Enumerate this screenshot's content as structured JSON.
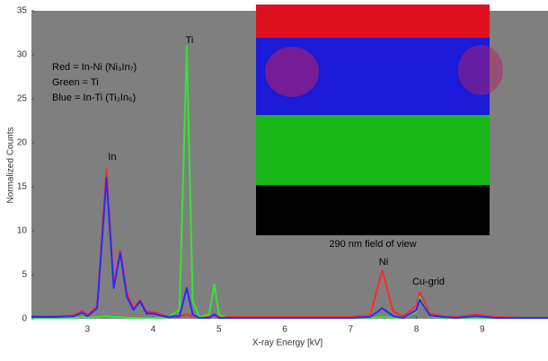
{
  "chart_data": {
    "type": "line",
    "xlabel": "X-ray Energy [kV]",
    "ylabel": "Normalized Counts",
    "x": [
      2.15,
      2.5,
      2.8,
      2.92,
      3.0,
      3.15,
      3.29,
      3.4,
      3.5,
      3.6,
      3.7,
      3.8,
      3.9,
      4.0,
      4.2,
      4.4,
      4.51,
      4.6,
      4.7,
      4.85,
      4.93,
      5.0,
      5.1,
      5.5,
      6.0,
      6.5,
      7.0,
      7.3,
      7.48,
      7.65,
      7.8,
      8.0,
      8.05,
      8.2,
      8.4,
      8.6,
      8.9,
      9.2,
      9.6,
      10.0
    ],
    "series": [
      {
        "name": "Red = In-Ni (Ni₃In₇)",
        "color": "#ff2a2a",
        "values": [
          0.3,
          0.3,
          0.4,
          0.9,
          0.4,
          1.5,
          17,
          4,
          7.8,
          3,
          1.2,
          2.1,
          0.8,
          0.8,
          0.3,
          0.3,
          0.5,
          0.3,
          0.2,
          0.2,
          0.4,
          0.2,
          0.2,
          0.2,
          0.2,
          0.2,
          0.2,
          0.4,
          5.5,
          0.8,
          0.3,
          1.5,
          3,
          0.6,
          0.3,
          0.2,
          0.5,
          0.2,
          0.1,
          0.1
        ]
      },
      {
        "name": "Green = Ti",
        "color": "#33e633",
        "values": [
          0.1,
          0.1,
          0.1,
          0.2,
          0.1,
          0.2,
          0.3,
          0.2,
          0.2,
          0.1,
          0.1,
          0.1,
          0.1,
          0.1,
          0.1,
          1,
          31,
          2,
          0.2,
          0.5,
          3.9,
          0.5,
          0.1,
          0.1,
          0.1,
          0.1,
          0.1,
          0.1,
          0.2,
          0.1,
          0.1,
          0.8,
          2.5,
          0.3,
          0.1,
          0.1,
          0.1,
          0.1,
          0.1,
          0.1
        ]
      },
      {
        "name": "Blue = In-Ti (Ti₂In₅)",
        "color": "#2a2aff",
        "values": [
          0.2,
          0.2,
          0.3,
          0.7,
          0.3,
          1.2,
          16,
          3.5,
          7.5,
          2.5,
          1,
          2,
          0.6,
          0.6,
          0.2,
          0.3,
          3.5,
          0.5,
          0.1,
          0.1,
          0.5,
          0.1,
          0.1,
          0.1,
          0.1,
          0.1,
          0.1,
          0.2,
          1.2,
          0.3,
          0.1,
          1,
          2.2,
          0.4,
          0.2,
          0.1,
          0.3,
          0.1,
          0.1,
          0.1
        ]
      }
    ],
    "xlim": [
      2.15,
      10
    ],
    "ylim": [
      0,
      35
    ],
    "xticks": [
      3,
      4,
      5,
      6,
      7,
      8,
      9
    ],
    "yticks": [
      0,
      5,
      10,
      15,
      20,
      25,
      30,
      35
    ],
    "annotations": [
      "In",
      "Ti",
      "Ni",
      "Cu-grid"
    ],
    "inset_caption": "290 nm field of view"
  }
}
